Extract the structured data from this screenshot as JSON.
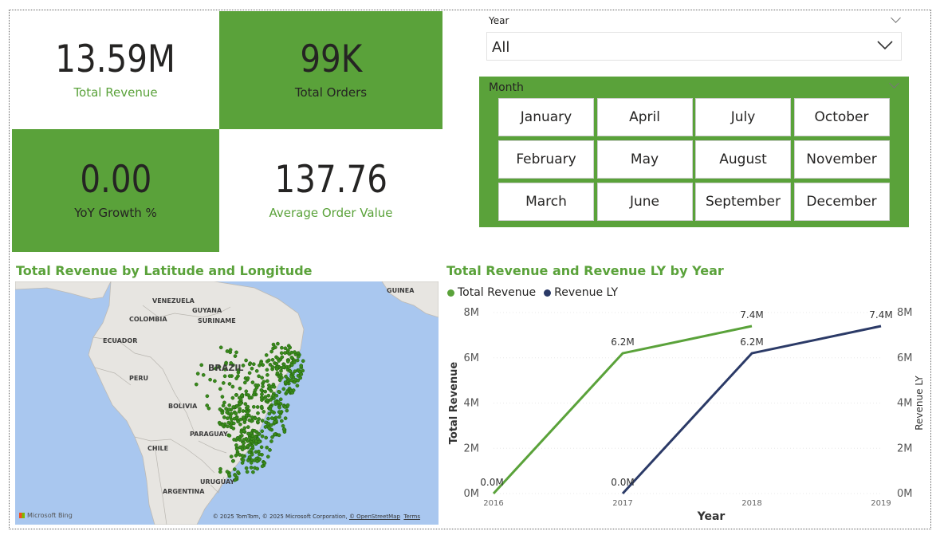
{
  "kpis": {
    "total_revenue": {
      "value": "13.59M",
      "label": "Total Revenue"
    },
    "total_orders": {
      "value": "99K",
      "label": "Total Orders"
    },
    "yoy_growth": {
      "value": "0.00",
      "label": "YoY Growth %"
    },
    "avg_order_value": {
      "value": "137.76",
      "label": "Average Order Value"
    }
  },
  "year_slicer": {
    "title": "Year",
    "selected": "All"
  },
  "month_slicer": {
    "title": "Month",
    "months": [
      "January",
      "April",
      "July",
      "October",
      "February",
      "May",
      "August",
      "November",
      "March",
      "June",
      "September",
      "December"
    ]
  },
  "map": {
    "title": "Total Revenue by Latitude and Longitude",
    "labels": [
      "VENEZUELA",
      "GUYANA",
      "GUINEA",
      "COLOMBIA",
      "SURINAME",
      "ECUADOR",
      "BRAZIL",
      "PERU",
      "BOLIVIA",
      "PARAGUAY",
      "CHILE",
      "URUGUAY",
      "ARGENTINA"
    ],
    "bing": "Microsoft Bing",
    "attribution": "© 2025 TomTom, © 2025 Microsoft Corporation,",
    "osm_link": "© OpenStreetMap",
    "terms_link": "Terms",
    "colors": {
      "water": "#a9c7ef",
      "land": "#e7e5e1",
      "dot": "#3a8a1c"
    }
  },
  "chart_data": {
    "type": "line",
    "title": "Total Revenue and Revenue LY by Year",
    "x": [
      "2016",
      "2017",
      "2018",
      "2019"
    ],
    "xlabel": "Year",
    "ylabel": "Total Revenue",
    "y2label": "Revenue LY",
    "ylim": [
      0,
      8
    ],
    "yticks": [
      "0M",
      "2M",
      "4M",
      "6M",
      "8M"
    ],
    "series": [
      {
        "name": "Total Revenue",
        "color": "#5aa23a",
        "values": [
          0.0,
          6.2,
          7.4,
          null
        ],
        "labels": [
          "0.0M",
          "6.2M",
          "7.4M",
          ""
        ]
      },
      {
        "name": "Revenue LY",
        "color": "#2b3a67",
        "values": [
          null,
          0.0,
          6.2,
          7.4
        ],
        "labels": [
          "",
          "0.0M",
          "6.2M",
          "7.4M"
        ]
      }
    ],
    "grid": true,
    "legend": "top-left"
  }
}
